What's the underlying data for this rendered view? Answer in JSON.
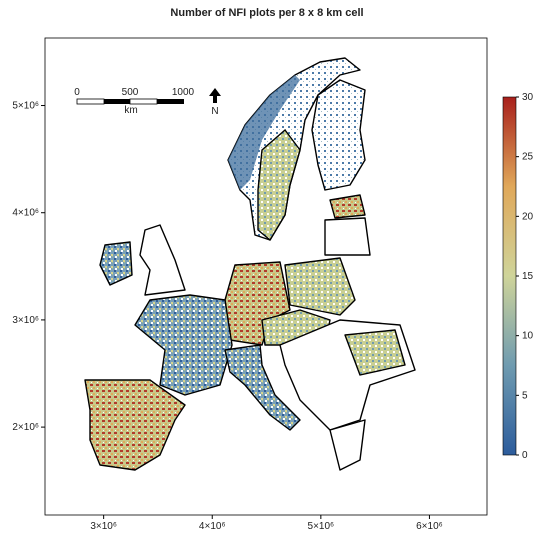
{
  "map": {
    "title": "Number of NFI plots per 8 x 8 km cell",
    "xlim": [
      2460000,
      6530000
    ],
    "ylim": [
      1180000,
      5630000
    ],
    "xticks": [
      {
        "value": 3000000,
        "label": "3×10⁶"
      },
      {
        "value": 4000000,
        "label": "4×10⁶"
      },
      {
        "value": 5000000,
        "label": "5×10⁶"
      },
      {
        "value": 6000000,
        "label": "6×10⁶"
      }
    ],
    "yticks": [
      {
        "value": 2000000,
        "label": "2×10⁶"
      },
      {
        "value": 3000000,
        "label": "3×10⁶"
      },
      {
        "value": 4000000,
        "label": "4×10⁶"
      },
      {
        "value": 5000000,
        "label": "5×10⁶"
      }
    ],
    "scale_bar": {
      "labels": [
        "0",
        "500",
        "1000"
      ],
      "unit": "km"
    },
    "north": "N",
    "colorbar": {
      "lim": [
        0,
        30
      ],
      "ticks": [
        0,
        5,
        10,
        15,
        20,
        25,
        30
      ],
      "colors": [
        "#2c5c9c",
        "#6f9bb0",
        "#cfd49a",
        "#e0a85a",
        "#a8201c"
      ]
    }
  }
}
